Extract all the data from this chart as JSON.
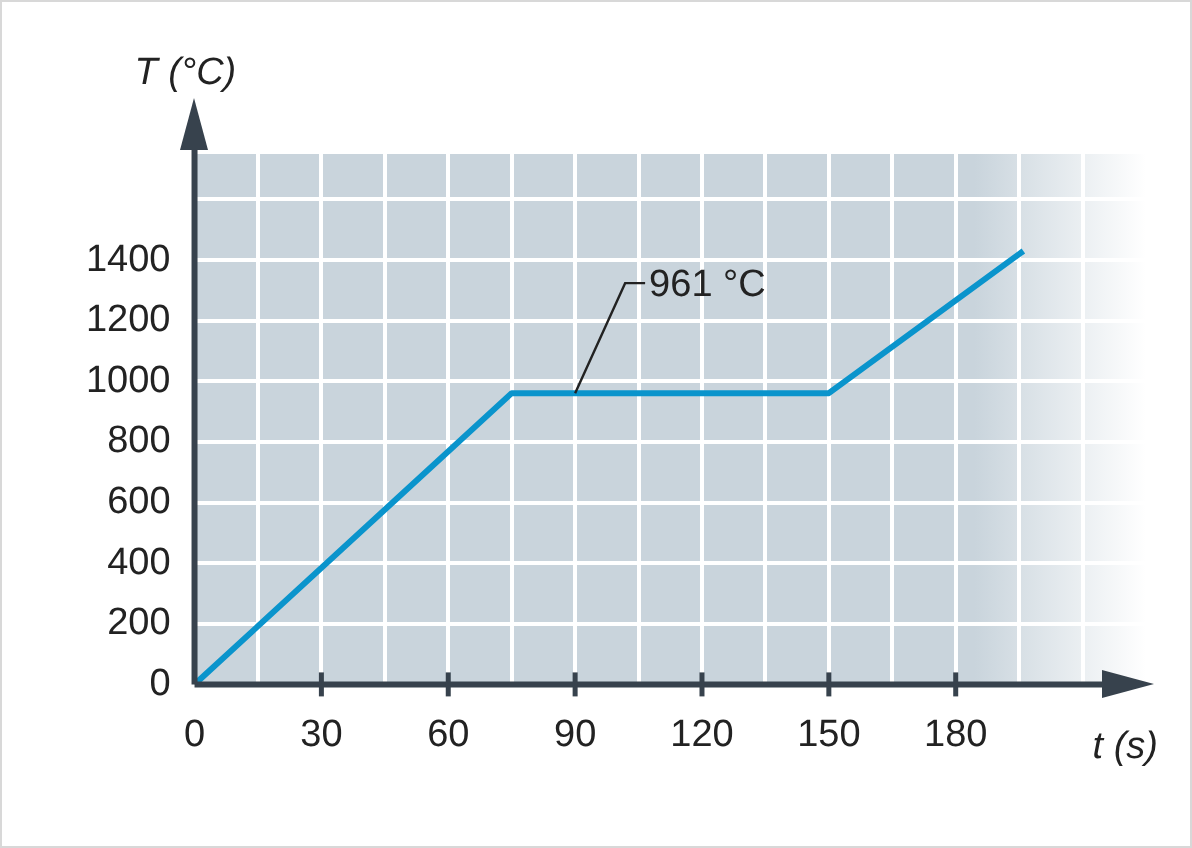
{
  "chart_data": {
    "type": "line",
    "xlabel": "t (s)",
    "ylabel": "T (°C)",
    "x": [
      0,
      75,
      150,
      196
    ],
    "series": [
      {
        "color": "#0a94cc",
        "values": [
          0,
          961,
          961,
          1430
        ]
      }
    ],
    "xlim": [
      0,
      225
    ],
    "xticks": [
      0,
      {
        "value": 15,
        "label": null
      },
      30,
      {
        "value": 45,
        "label": null
      },
      60,
      {
        "value": 75,
        "label": null
      },
      90,
      {
        "value": 105,
        "label": null
      },
      120,
      {
        "value": 135,
        "label": null
      },
      150,
      {
        "value": 165,
        "label": null
      },
      180,
      {
        "value": 195,
        "label": null
      },
      {
        "value": 210,
        "label": null
      }
    ],
    "ylim": [
      0,
      1750
    ],
    "yticks": [
      0,
      200,
      400,
      600,
      800,
      1000,
      1200,
      1400,
      {
        "value": 1600,
        "label": null
      }
    ],
    "grid": true,
    "legend": false,
    "marker": "none",
    "line_style": "solid",
    "annotations": [
      {
        "text": "961 °C",
        "x": 90,
        "y": 961
      }
    ]
  }
}
